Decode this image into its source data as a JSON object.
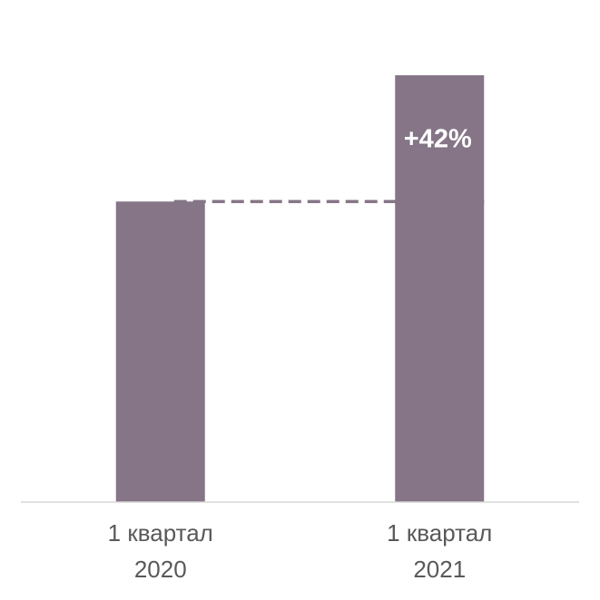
{
  "chart_data": {
    "type": "bar",
    "categories": [
      [
        "1 квартал",
        "2020"
      ],
      [
        "1 квартал",
        "2021"
      ]
    ],
    "values": [
      100,
      142
    ],
    "color": "#857587",
    "ylim": [
      0,
      150
    ],
    "annotation": "+42%",
    "reference_line": true
  }
}
